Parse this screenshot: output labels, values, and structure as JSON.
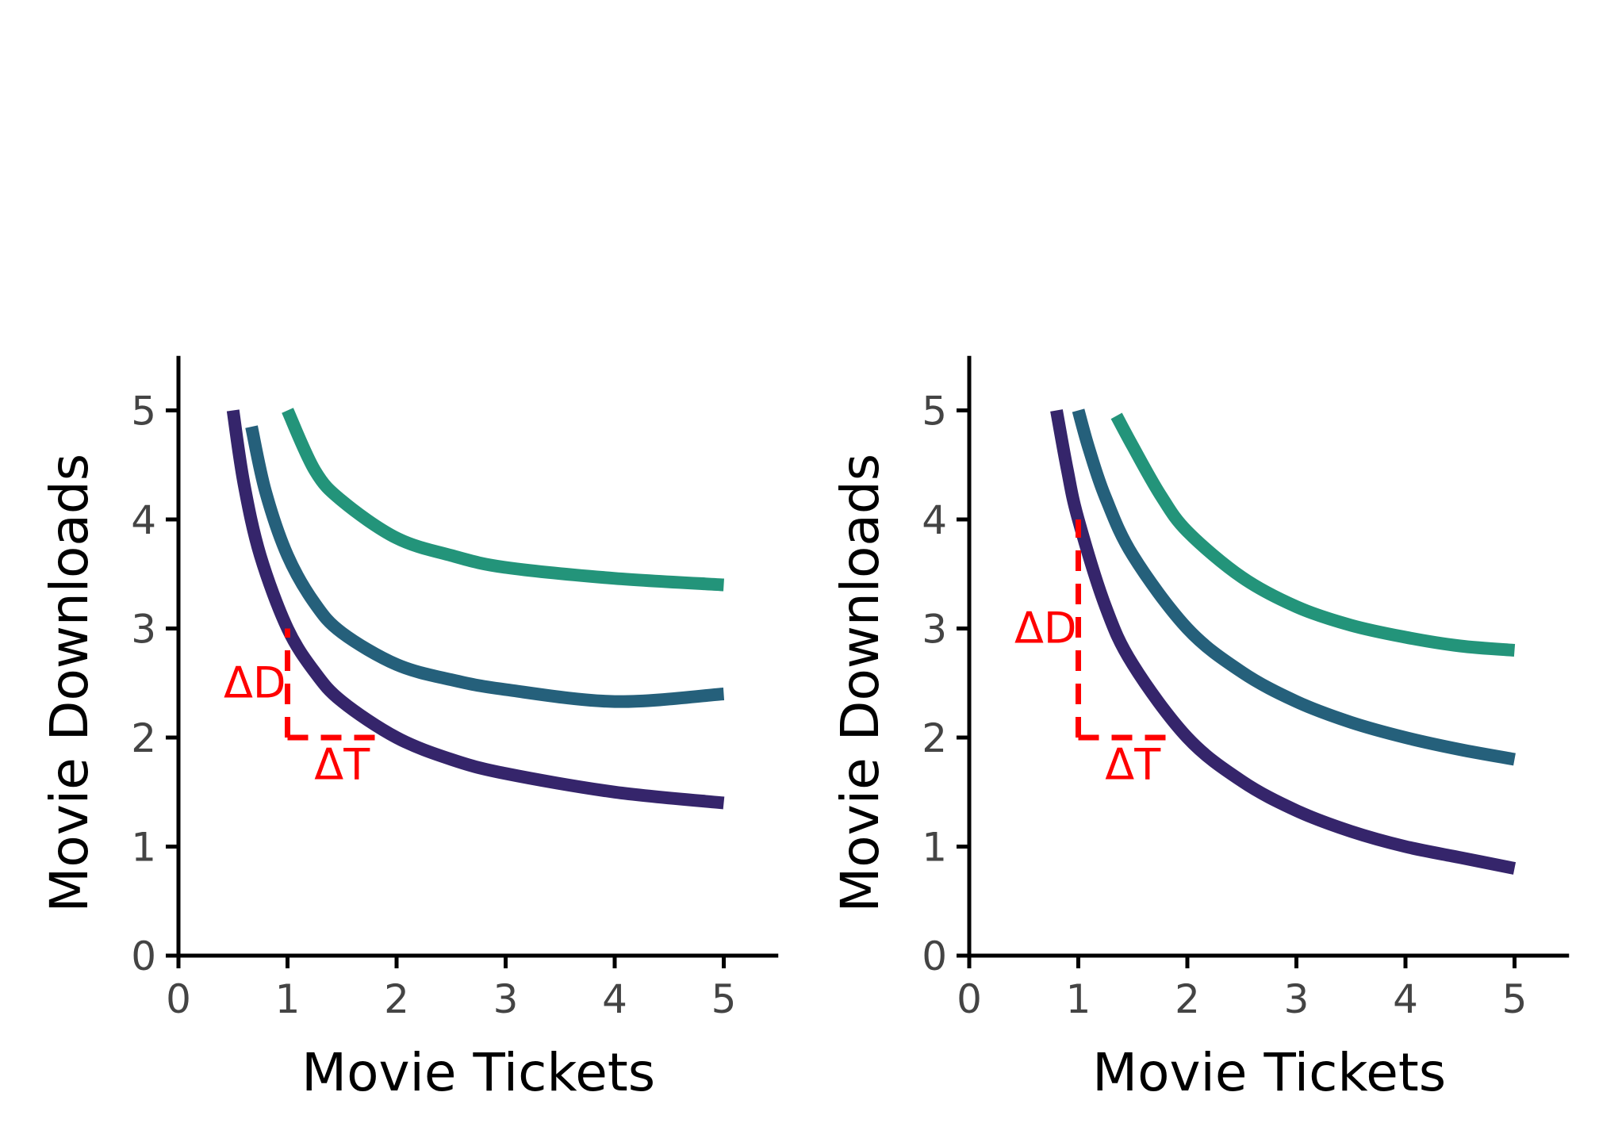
{
  "chart_data": [
    {
      "type": "line",
      "title": "",
      "xlabel": "Movie Tickets",
      "ylabel": "Movie Downloads",
      "xlim": [
        0,
        5.5
      ],
      "ylim": [
        0,
        5.5
      ],
      "xticks": [
        0,
        1,
        2,
        3,
        4,
        5
      ],
      "yticks": [
        0,
        1,
        2,
        3,
        4,
        5
      ],
      "grid": false,
      "legend": "none",
      "series": [
        {
          "color": "#35256b",
          "x": [
            0.5,
            0.6,
            0.75,
            1,
            1.25,
            1.5,
            2,
            2.5,
            3,
            4,
            5
          ],
          "y": [
            5.0,
            4.33,
            3.67,
            3.0,
            2.6,
            2.33,
            2.0,
            1.8,
            1.67,
            1.5,
            1.4
          ]
        },
        {
          "color": "#25607b",
          "x": [
            0.67,
            0.8,
            1,
            1.25,
            1.5,
            2,
            2.5,
            3,
            4,
            5
          ],
          "y": [
            4.85,
            4.25,
            3.67,
            3.23,
            2.96,
            2.67,
            2.53,
            2.44,
            2.33,
            2.4
          ]
        },
        {
          "color": "#23947a",
          "x": [
            1,
            1.25,
            1.5,
            2,
            2.5,
            3,
            4,
            5
          ],
          "y": [
            5.0,
            4.45,
            4.17,
            3.83,
            3.67,
            3.56,
            3.46,
            3.4
          ]
        }
      ],
      "annotations": [
        {
          "text": "ΔD",
          "x": 0.7,
          "y": 2.5,
          "color": "#ff0000"
        },
        {
          "text": "ΔT",
          "x": 1.5,
          "y": 1.75,
          "color": "#ff0000"
        }
      ],
      "guides": [
        {
          "from": [
            1,
            2
          ],
          "to": [
            1,
            3
          ],
          "color": "#ff0000",
          "style": "dashed"
        },
        {
          "from": [
            1,
            2
          ],
          "to": [
            1.8,
            2
          ],
          "color": "#ff0000",
          "style": "dashed"
        }
      ]
    },
    {
      "type": "line",
      "title": "",
      "xlabel": "Movie Tickets",
      "ylabel": "Movie Downloads",
      "xlim": [
        0,
        5.5
      ],
      "ylim": [
        0,
        5.5
      ],
      "xticks": [
        0,
        1,
        2,
        3,
        4,
        5
      ],
      "yticks": [
        0,
        1,
        2,
        3,
        4,
        5
      ],
      "grid": false,
      "legend": "none",
      "series": [
        {
          "color": "#35256b",
          "x": [
            0.8,
            0.9,
            1,
            1.25,
            1.5,
            2,
            2.5,
            3,
            3.5,
            4,
            4.5,
            5
          ],
          "y": [
            5.0,
            4.45,
            4.0,
            3.2,
            2.67,
            2.0,
            1.6,
            1.33,
            1.14,
            1.0,
            0.9,
            0.8
          ]
        },
        {
          "color": "#25607b",
          "x": [
            1,
            1.1,
            1.25,
            1.5,
            2,
            2.5,
            3,
            3.5,
            4,
            4.5,
            5
          ],
          "y": [
            5.0,
            4.64,
            4.2,
            3.67,
            3.0,
            2.6,
            2.33,
            2.14,
            2.0,
            1.89,
            1.8
          ]
        },
        {
          "color": "#23947a",
          "x": [
            1.35,
            1.5,
            1.75,
            2,
            2.5,
            3,
            3.5,
            4,
            4.5,
            5
          ],
          "y": [
            4.95,
            4.67,
            4.23,
            3.89,
            3.47,
            3.2,
            3.03,
            2.92,
            2.84,
            2.8
          ]
        }
      ],
      "annotations": [
        {
          "text": "ΔD",
          "x": 0.7,
          "y": 3.0,
          "color": "#ff0000"
        },
        {
          "text": "ΔT",
          "x": 1.5,
          "y": 1.75,
          "color": "#ff0000"
        }
      ],
      "guides": [
        {
          "from": [
            1,
            2
          ],
          "to": [
            1,
            4
          ],
          "color": "#ff0000",
          "style": "dashed"
        },
        {
          "from": [
            1,
            2
          ],
          "to": [
            1.8,
            2
          ],
          "color": "#ff0000",
          "style": "dashed"
        }
      ]
    }
  ]
}
